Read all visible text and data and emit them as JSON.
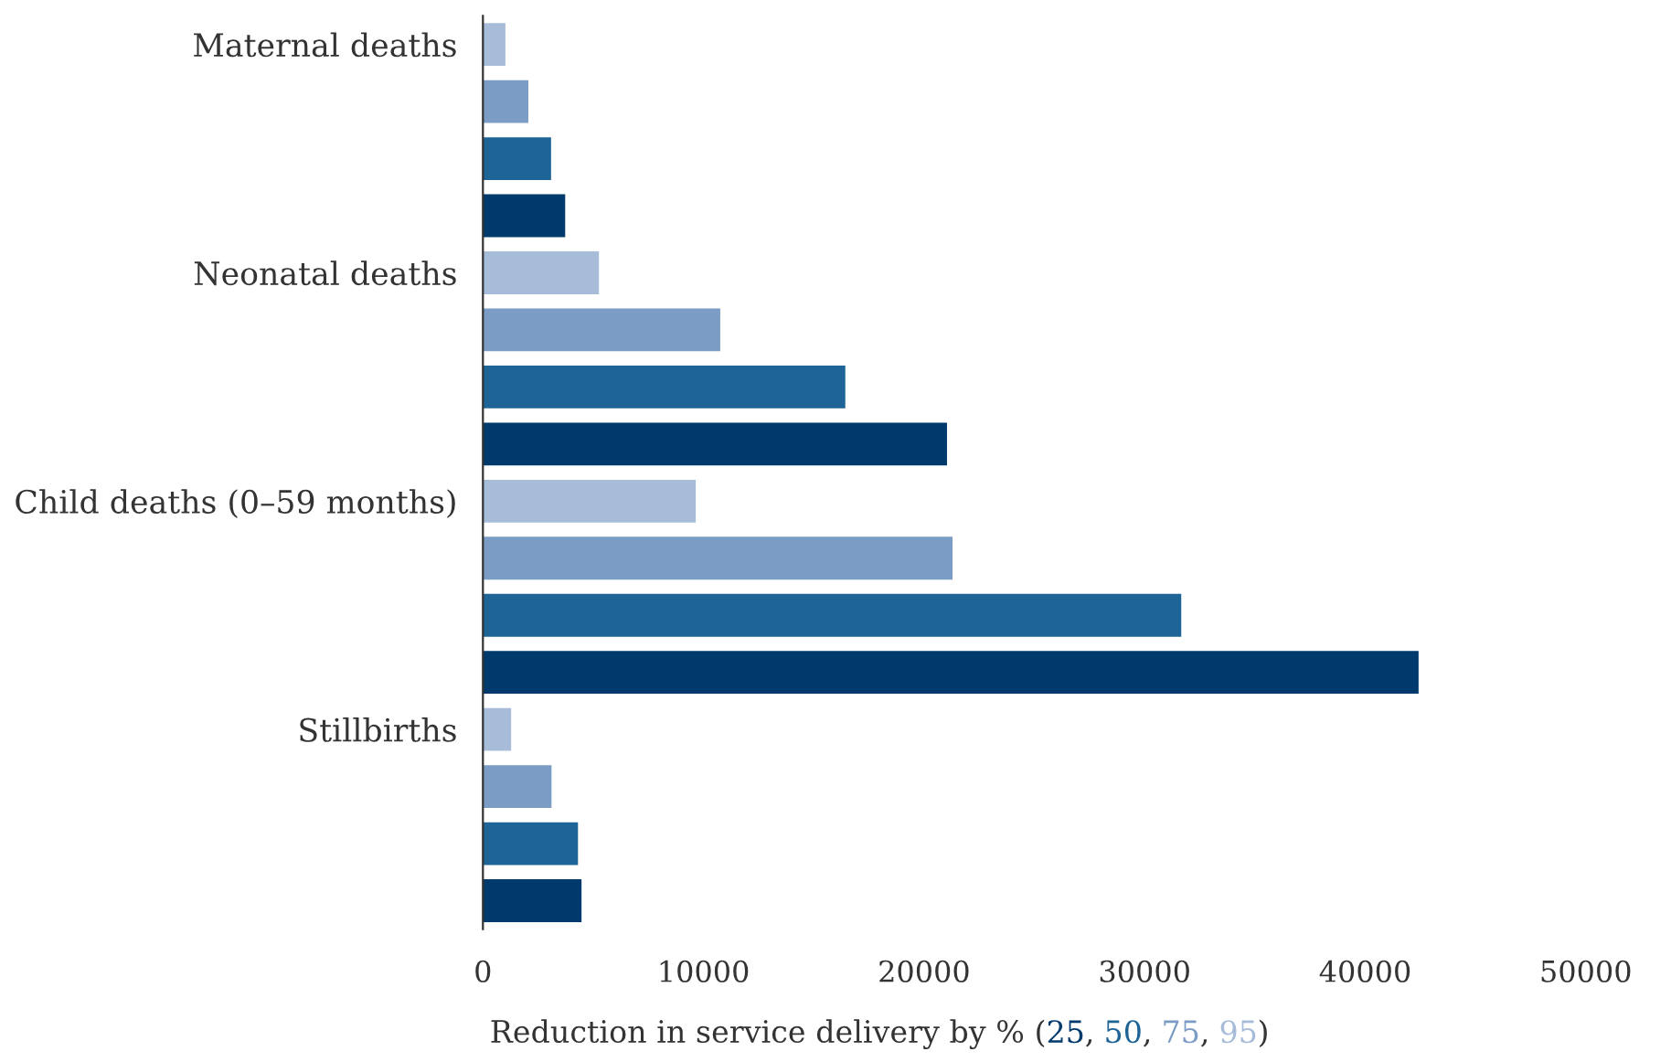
{
  "chart_data": {
    "type": "bar",
    "orientation": "horizontal",
    "categories": [
      "Maternal deaths",
      "Neonatal deaths",
      "Child deaths (0–59 months)",
      "Stillbirths"
    ],
    "series": [
      {
        "name": "95",
        "color": "#a7bcd9",
        "values": [
          1020,
          5260,
          9650,
          1280
        ]
      },
      {
        "name": "75",
        "color": "#7b9cc4",
        "values": [
          2060,
          10760,
          21290,
          3110
        ]
      },
      {
        "name": "50",
        "color": "#1f6496",
        "values": [
          3090,
          16430,
          31660,
          4310
        ]
      },
      {
        "name": "25",
        "color": "#003a6c",
        "values": [
          3730,
          21040,
          42420,
          4470
        ]
      }
    ],
    "xlabel": "Reduction in service delivery by %",
    "annotations": [
      "(",
      ",",
      ",",
      ",",
      ")"
    ],
    "xlim": [
      0,
      50000
    ],
    "xticks": [
      0,
      10000,
      20000,
      30000,
      40000,
      50000
    ],
    "grid": false,
    "legend": false
  }
}
